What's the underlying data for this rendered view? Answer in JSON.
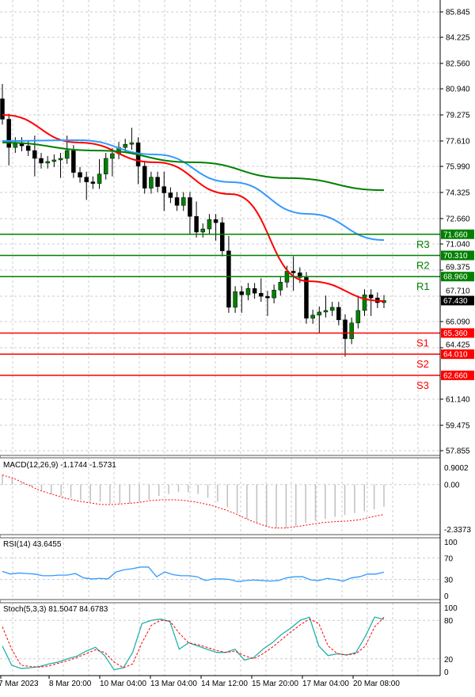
{
  "chart_data": [
    {
      "type": "candlestick",
      "yticks": [
        "85.845",
        "84.225",
        "82.560",
        "80.940",
        "79.275",
        "77.610",
        "75.990",
        "74.325",
        "72.660",
        "71.040",
        "69.375",
        "67.710",
        "66.090",
        "64.425",
        "61.140",
        "59.475",
        "57.855"
      ],
      "ylim": [
        57.855,
        85.845
      ],
      "closes": [
        79.0,
        77.2,
        77.5,
        77.3,
        77.0,
        76.5,
        76.2,
        76.3,
        76.4,
        76.5,
        77.0,
        75.6,
        75.3,
        75.0,
        74.9,
        75.5,
        76.5,
        76.8,
        77.2,
        77.4,
        77.5,
        76.0,
        74.6,
        75.3,
        74.7,
        74.3,
        74.0,
        73.5,
        74.0,
        72.8,
        71.8,
        72.0,
        72.6,
        72.4,
        70.6,
        67.0,
        68.0,
        67.8,
        68.2,
        67.9,
        67.7,
        67.6,
        68.1,
        68.6,
        69.3,
        69.2,
        68.9,
        66.3,
        66.5,
        66.7,
        66.8,
        67.0,
        66.2,
        65.0,
        66.0,
        66.8,
        67.8,
        67.6,
        67.3,
        67.43
      ],
      "first_open": 80.3,
      "current_price": "67.430",
      "moving_averages": [
        {
          "color": "#ff0000",
          "values": [
            79.28,
            77.51,
            76.25,
            74.22,
            68.67,
            67.4
          ]
        },
        {
          "color": "#3399ff",
          "values": [
            77.61,
            77.66,
            76.75,
            74.98,
            72.96,
            71.29
          ]
        },
        {
          "color": "#008000",
          "values": [
            77.51,
            77.0,
            76.25,
            75.24,
            74.47
          ]
        }
      ],
      "levels": [
        {
          "label": "R3",
          "value": 71.66,
          "text": "71.660",
          "color": "#008000"
        },
        {
          "label": "R2",
          "value": 70.31,
          "text": "70.310",
          "color": "#008000"
        },
        {
          "label": "R1",
          "value": 68.96,
          "text": "68.960",
          "color": "#008000"
        },
        {
          "label": "S1",
          "value": 65.36,
          "text": "65.360",
          "color": "#ff0000"
        },
        {
          "label": "S2",
          "value": 64.01,
          "text": "64.010",
          "color": "#ff0000"
        },
        {
          "label": "S3",
          "value": 62.66,
          "text": "62.660",
          "color": "#ff0000"
        }
      ],
      "bull_color": "#008000",
      "bear_color": "#000000"
    },
    {
      "type": "macd",
      "title": "MACD(12,26,9) -1.1744 -1.5731",
      "yticks": [
        "0.9002",
        "0.00",
        "-2.3373"
      ],
      "ylim": [
        -2.3373,
        0.9002
      ],
      "histogram": [
        0.5,
        0.3,
        0.1,
        -0.1,
        -0.3,
        -0.5,
        -0.6,
        -0.7,
        -0.8,
        -0.9,
        -0.9,
        -1.0,
        -1.0,
        -1.0,
        -0.9,
        -0.8,
        -0.6,
        -0.5,
        -0.4,
        -0.4,
        -0.5,
        -0.7,
        -0.9,
        -1.2,
        -1.5,
        -1.8,
        -2.0,
        -2.2,
        -2.3,
        -2.3,
        -2.2,
        -2.0,
        -1.9,
        -1.8,
        -1.7,
        -1.6,
        -1.5,
        -1.4,
        -1.3,
        -1.17
      ],
      "signal": [
        0.5,
        0.3,
        0.0,
        -0.3,
        -0.5,
        -0.7,
        -0.85,
        -0.95,
        -1.05,
        -1.05,
        -1.0,
        -0.95,
        -0.85,
        -0.8,
        -0.8,
        -0.85,
        -0.95,
        -1.1,
        -1.3,
        -1.55,
        -1.85,
        -2.1,
        -2.28,
        -2.28,
        -2.2,
        -2.1,
        -2.0,
        -1.95,
        -1.92,
        -1.85,
        -1.7,
        -1.57
      ],
      "signal_color": "#ff0000"
    },
    {
      "type": "line",
      "title": "RSI(14) 43.6455",
      "yticks": [
        "100",
        "70",
        "30",
        "0"
      ],
      "ylim": [
        0,
        100
      ],
      "values": [
        45,
        40,
        42,
        41,
        40,
        37,
        37,
        38,
        38,
        41,
        33,
        31,
        32,
        31,
        44,
        48,
        50,
        53,
        53,
        35,
        44,
        39,
        37,
        37,
        35,
        28,
        31,
        31,
        30,
        26,
        28,
        29,
        28,
        27,
        28,
        33,
        35,
        35,
        29,
        28,
        32,
        30,
        27,
        33,
        35,
        40,
        40,
        43.6
      ],
      "color": "#3399ff"
    },
    {
      "type": "line",
      "title": "Stoch(5,3,3) 81.5047 84.6783",
      "yticks": [
        "100",
        "80",
        "20",
        "0"
      ],
      "ylim": [
        0,
        100
      ],
      "main": [
        40,
        10,
        5,
        6,
        8,
        12,
        15,
        20,
        24,
        32,
        38,
        25,
        3,
        6,
        30,
        75,
        80,
        82,
        78,
        35,
        45,
        40,
        35,
        30,
        30,
        35,
        18,
        22,
        35,
        45,
        58,
        68,
        80,
        85,
        40,
        25,
        28,
        26,
        30,
        55,
        85,
        81.5
      ],
      "signal": [
        70,
        35,
        10,
        8,
        7,
        9,
        13,
        17,
        22,
        28,
        34,
        30,
        15,
        6,
        12,
        45,
        72,
        80,
        79,
        60,
        45,
        42,
        38,
        33,
        30,
        32,
        25,
        20,
        28,
        38,
        50,
        62,
        73,
        82,
        75,
        40,
        28,
        26,
        28,
        40,
        70,
        84.7
      ],
      "main_color": "#20b2aa",
      "signal_color": "#ff0000"
    }
  ],
  "xticks": [
    "7 Mar 2023",
    "8 Mar 20:00",
    "10 Mar 04:00",
    "13 Mar 04:00",
    "14 Mar 12:00",
    "15 Mar 20:00",
    "17 Mar 04:00",
    "20 Mar 08:00"
  ],
  "grid": true
}
